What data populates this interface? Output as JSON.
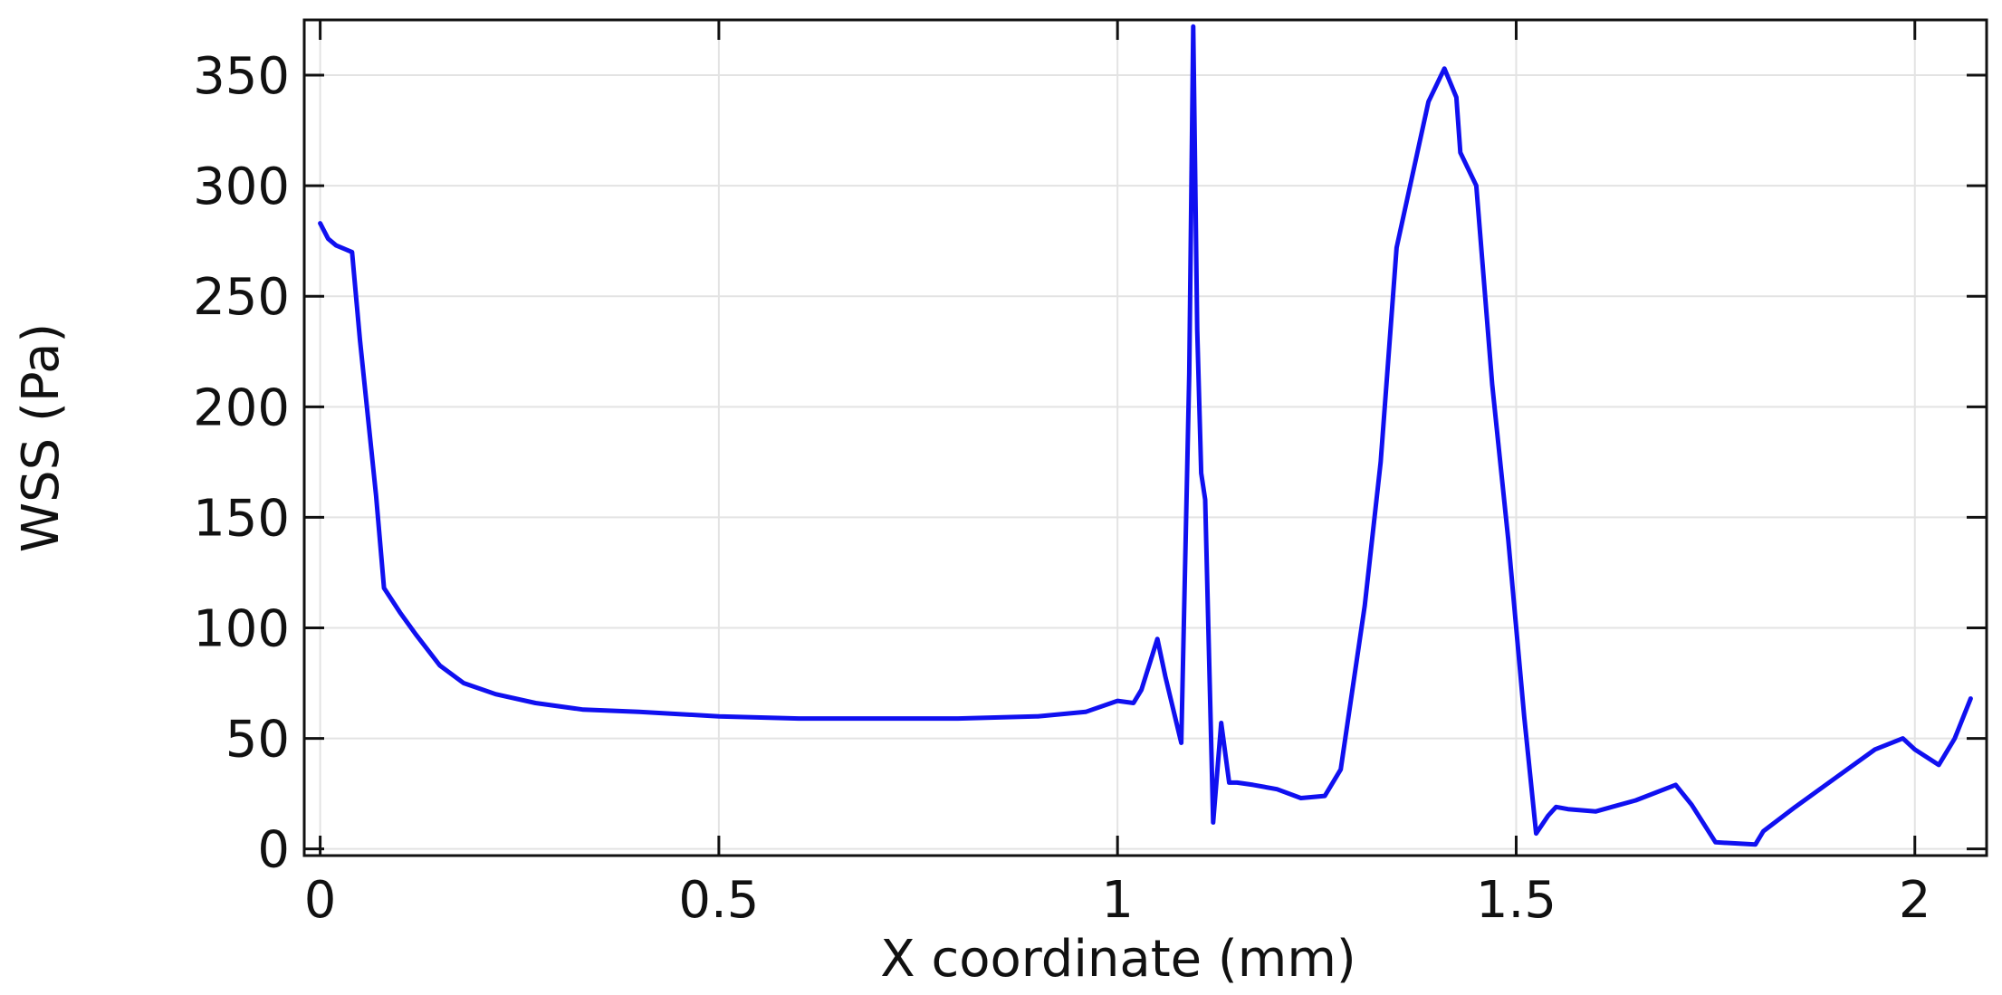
{
  "chart_data": {
    "type": "line",
    "title": "",
    "xlabel": "X coordinate (mm)",
    "ylabel": "WSS (Pa)",
    "xlim": [
      -0.02,
      2.09
    ],
    "ylim": [
      -3,
      375
    ],
    "xticks": [
      0,
      0.5,
      1,
      1.5,
      2
    ],
    "xtick_labels": [
      "0",
      "0.5",
      "1",
      "1.5",
      "2"
    ],
    "yticks": [
      0,
      50,
      100,
      150,
      200,
      250,
      300,
      350
    ],
    "ytick_labels": [
      "0",
      "50",
      "100",
      "150",
      "200",
      "250",
      "300",
      "350"
    ],
    "grid": true,
    "legend": "none",
    "colors": {
      "line": "#1010f0",
      "grid": "#e3e3e3",
      "axis": "#111111"
    },
    "series": [
      {
        "x": [
          0.0,
          0.01,
          0.02,
          0.04,
          0.05,
          0.07,
          0.08,
          0.1,
          0.12,
          0.15,
          0.18,
          0.22,
          0.27,
          0.33,
          0.4,
          0.5,
          0.6,
          0.7,
          0.8,
          0.9,
          0.96,
          1.0,
          1.02,
          1.03,
          1.05,
          1.06,
          1.08,
          1.09,
          1.095,
          1.1,
          1.105,
          1.11,
          1.12,
          1.13,
          1.14,
          1.15,
          1.17,
          1.2,
          1.23,
          1.26,
          1.28,
          1.31,
          1.33,
          1.35,
          1.37,
          1.39,
          1.41,
          1.425,
          1.43,
          1.45,
          1.47,
          1.49,
          1.51,
          1.525,
          1.54,
          1.55,
          1.565,
          1.6,
          1.65,
          1.7,
          1.72,
          1.75,
          1.8,
          1.81,
          1.85,
          1.9,
          1.95,
          1.985,
          2.0,
          2.03,
          2.05,
          2.07
        ],
        "y": [
          283,
          276,
          273,
          270,
          230,
          160,
          118,
          107,
          97,
          83,
          75,
          70,
          66,
          63,
          62,
          60,
          59,
          59,
          59,
          60,
          62,
          67,
          66,
          72,
          95,
          78,
          48,
          215,
          372,
          235,
          170,
          158,
          12,
          57,
          30,
          30,
          29,
          27,
          23,
          24,
          36,
          110,
          175,
          272,
          305,
          338,
          353,
          340,
          315,
          300,
          210,
          140,
          60,
          7,
          15,
          19,
          18,
          17,
          22,
          29,
          20,
          3,
          2,
          8,
          19,
          32,
          45,
          50,
          45,
          38,
          50,
          68
        ]
      }
    ]
  }
}
